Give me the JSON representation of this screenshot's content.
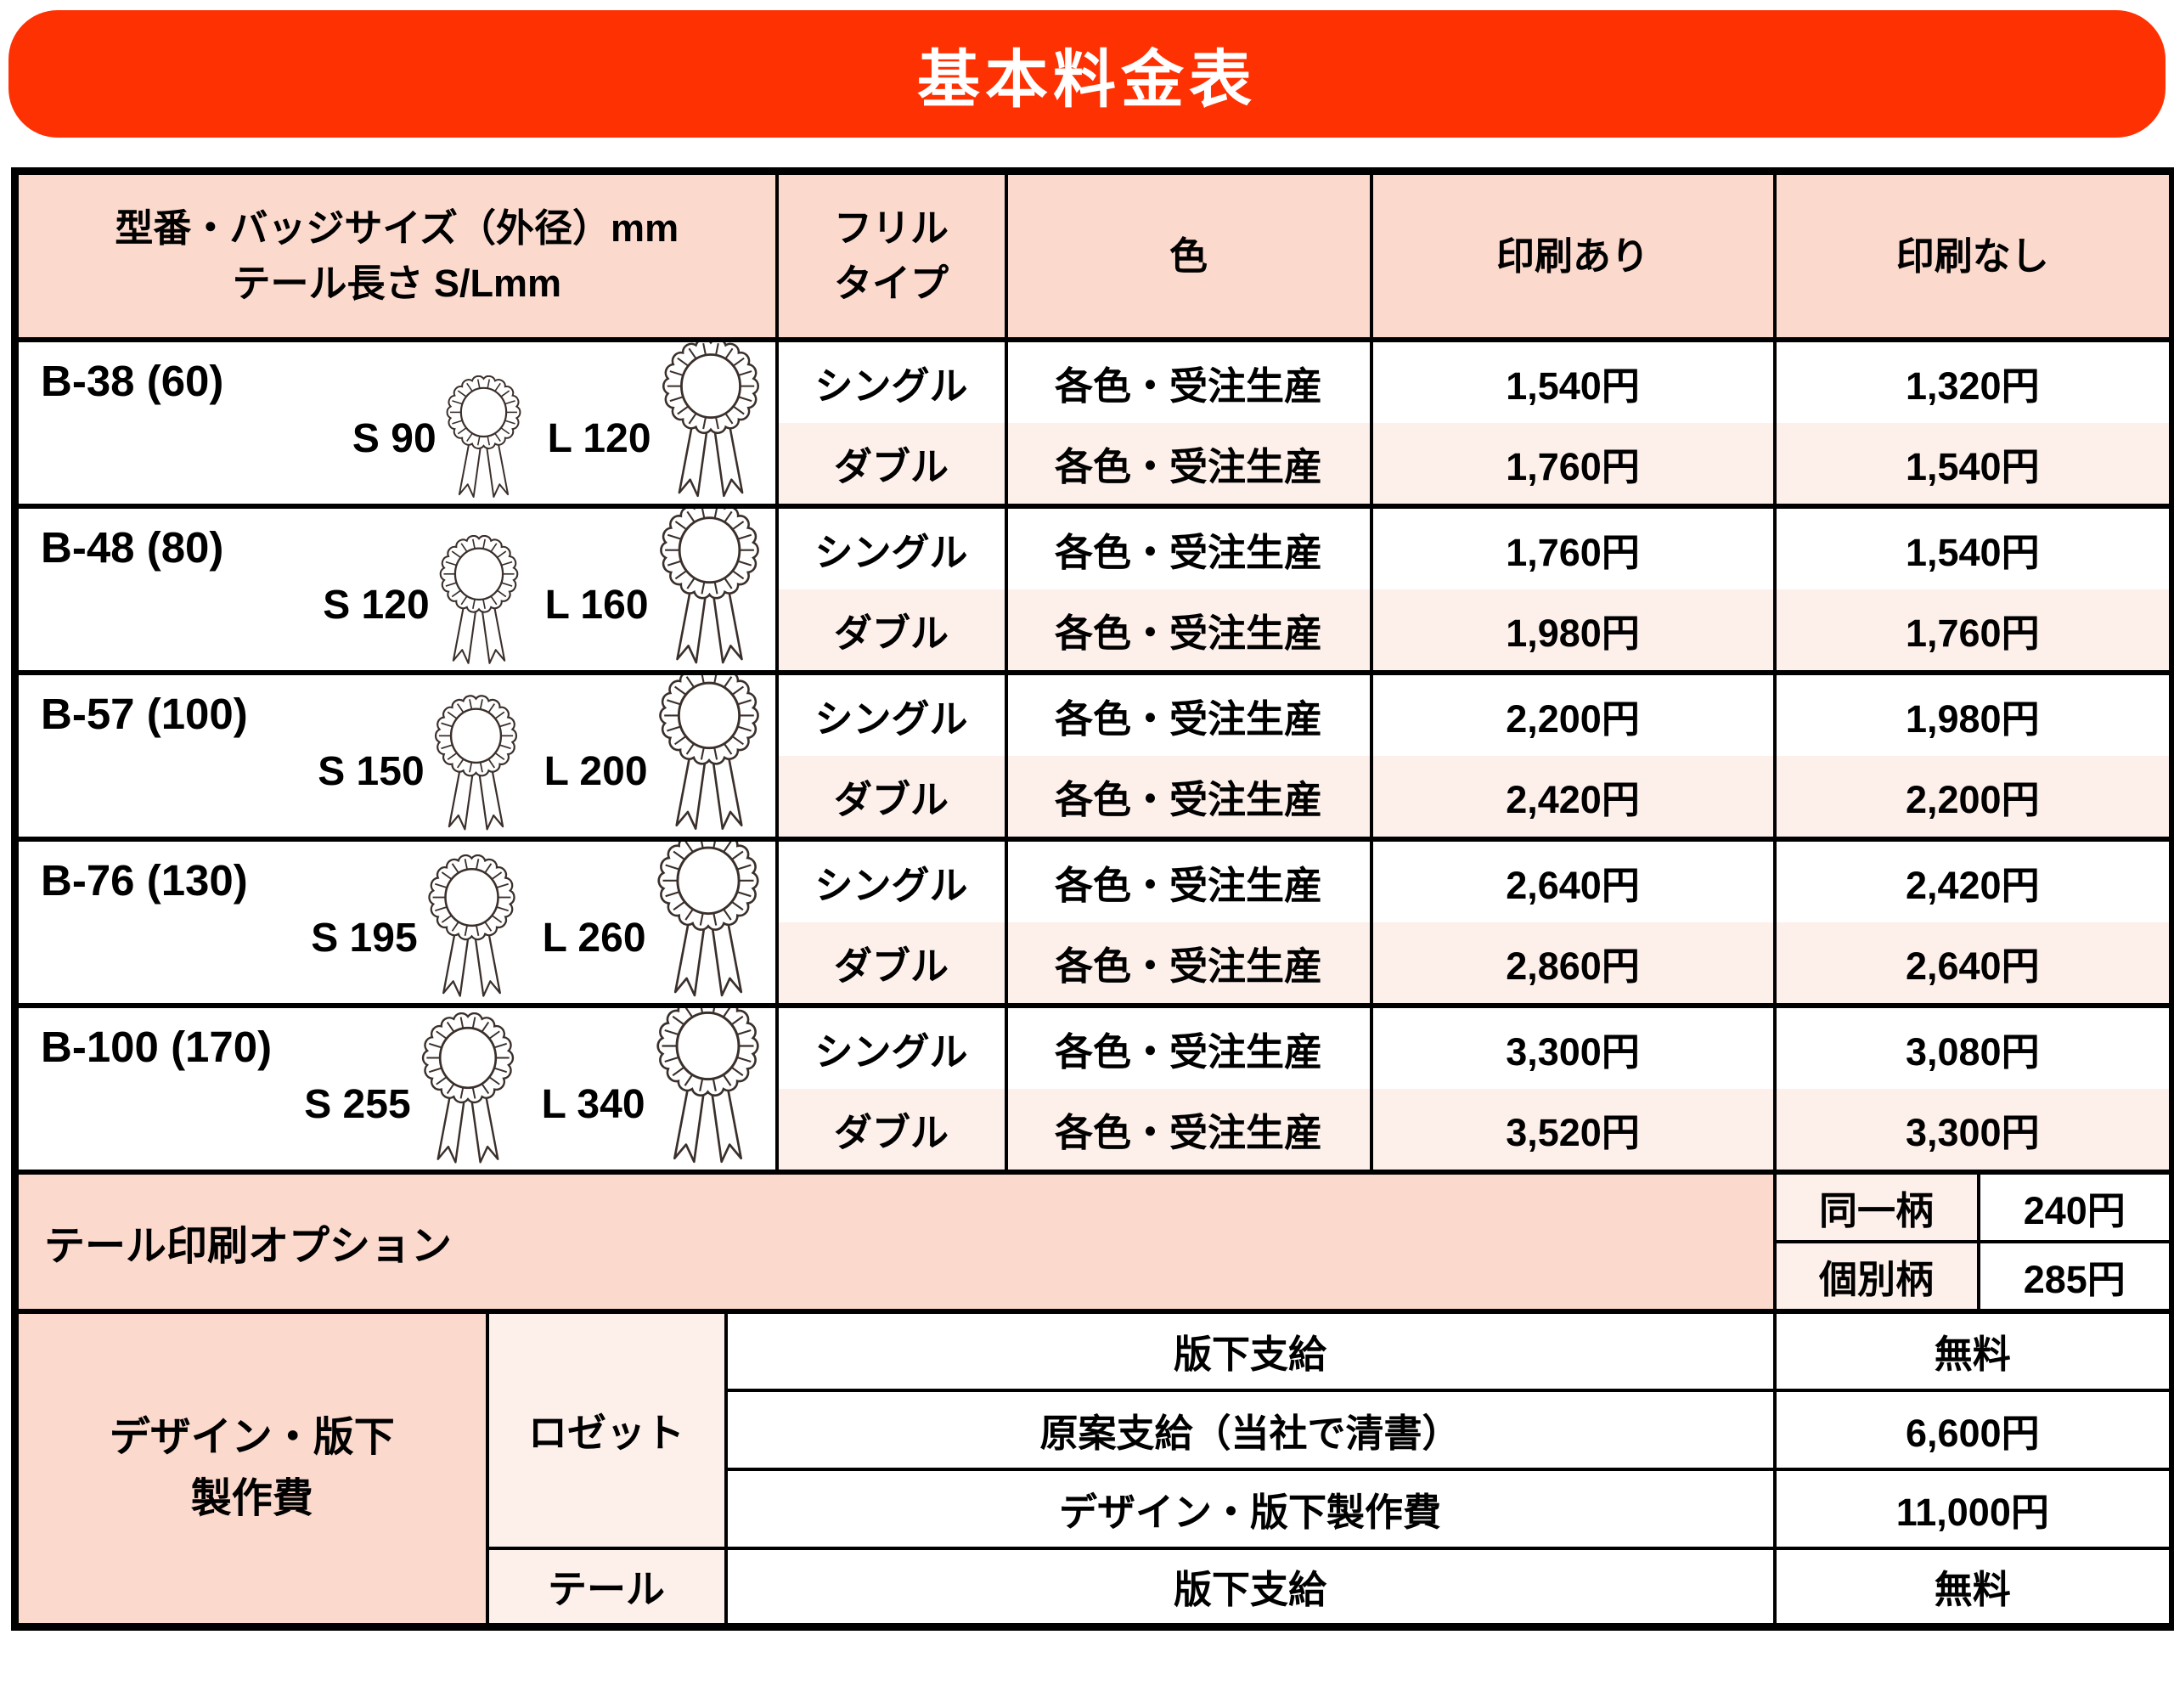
{
  "title": "基本料金表",
  "colors": {
    "banner_red": "#fe3103",
    "header_pink": "#fbd9cc",
    "row_pink": "#fdf0ea",
    "border_black": "#000000",
    "rosette_line": "#3a2f2b"
  },
  "table": {
    "headers": {
      "col1_line1": "型番・バッジサイズ（外径）mm",
      "col1_line2": "テール長さ S/Lmm",
      "frill_line1": "フリル",
      "frill_line2": "タイプ",
      "color": "色",
      "printed": "印刷あり",
      "unprinted": "印刷なし"
    },
    "groups": [
      {
        "model": "B-38 (60)",
        "s_label": "S 90",
        "l_label": "L 120",
        "rows": [
          {
            "frill": "シングル",
            "color": "各色・受注生産",
            "printed": "1,540円",
            "unprinted": "1,320円"
          },
          {
            "frill": "ダブル",
            "color": "各色・受注生産",
            "printed": "1,760円",
            "unprinted": "1,540円"
          }
        ]
      },
      {
        "model": "B-48 (80)",
        "s_label": "S 120",
        "l_label": "L 160",
        "rows": [
          {
            "frill": "シングル",
            "color": "各色・受注生産",
            "printed": "1,760円",
            "unprinted": "1,540円"
          },
          {
            "frill": "ダブル",
            "color": "各色・受注生産",
            "printed": "1,980円",
            "unprinted": "1,760円"
          }
        ]
      },
      {
        "model": "B-57 (100)",
        "s_label": "S 150",
        "l_label": "L 200",
        "rows": [
          {
            "frill": "シングル",
            "color": "各色・受注生産",
            "printed": "2,200円",
            "unprinted": "1,980円"
          },
          {
            "frill": "ダブル",
            "color": "各色・受注生産",
            "printed": "2,420円",
            "unprinted": "2,200円"
          }
        ]
      },
      {
        "model": "B-76 (130)",
        "s_label": "S 195",
        "l_label": "L 260",
        "rows": [
          {
            "frill": "シングル",
            "color": "各色・受注生産",
            "printed": "2,640円",
            "unprinted": "2,420円"
          },
          {
            "frill": "ダブル",
            "color": "各色・受注生産",
            "printed": "2,860円",
            "unprinted": "2,640円"
          }
        ]
      },
      {
        "model": "B-100 (170)",
        "s_label": "S 255",
        "l_label": "L 340",
        "rows": [
          {
            "frill": "シングル",
            "color": "各色・受注生産",
            "printed": "3,300円",
            "unprinted": "3,080円"
          },
          {
            "frill": "ダブル",
            "color": "各色・受注生産",
            "printed": "3,520円",
            "unprinted": "3,300円"
          }
        ]
      }
    ],
    "tail_option": {
      "label": "テール印刷オプション",
      "rows": [
        {
          "type": "同一柄",
          "price": "240円"
        },
        {
          "type": "個別柄",
          "price": "285円"
        }
      ]
    },
    "design_section": {
      "label_line1": "デザイン・版下",
      "label_line2": "製作費",
      "rosette_label": "ロゼット",
      "tail_label": "テール",
      "rosette_rows": [
        {
          "desc": "版下支給",
          "price": "無料"
        },
        {
          "desc": "原案支給（当社で清書）",
          "price": "6,600円"
        },
        {
          "desc": "デザイン・版下製作費",
          "price": "11,000円"
        }
      ],
      "tail_rows": [
        {
          "desc": "版下支給",
          "price": "無料"
        }
      ]
    }
  }
}
